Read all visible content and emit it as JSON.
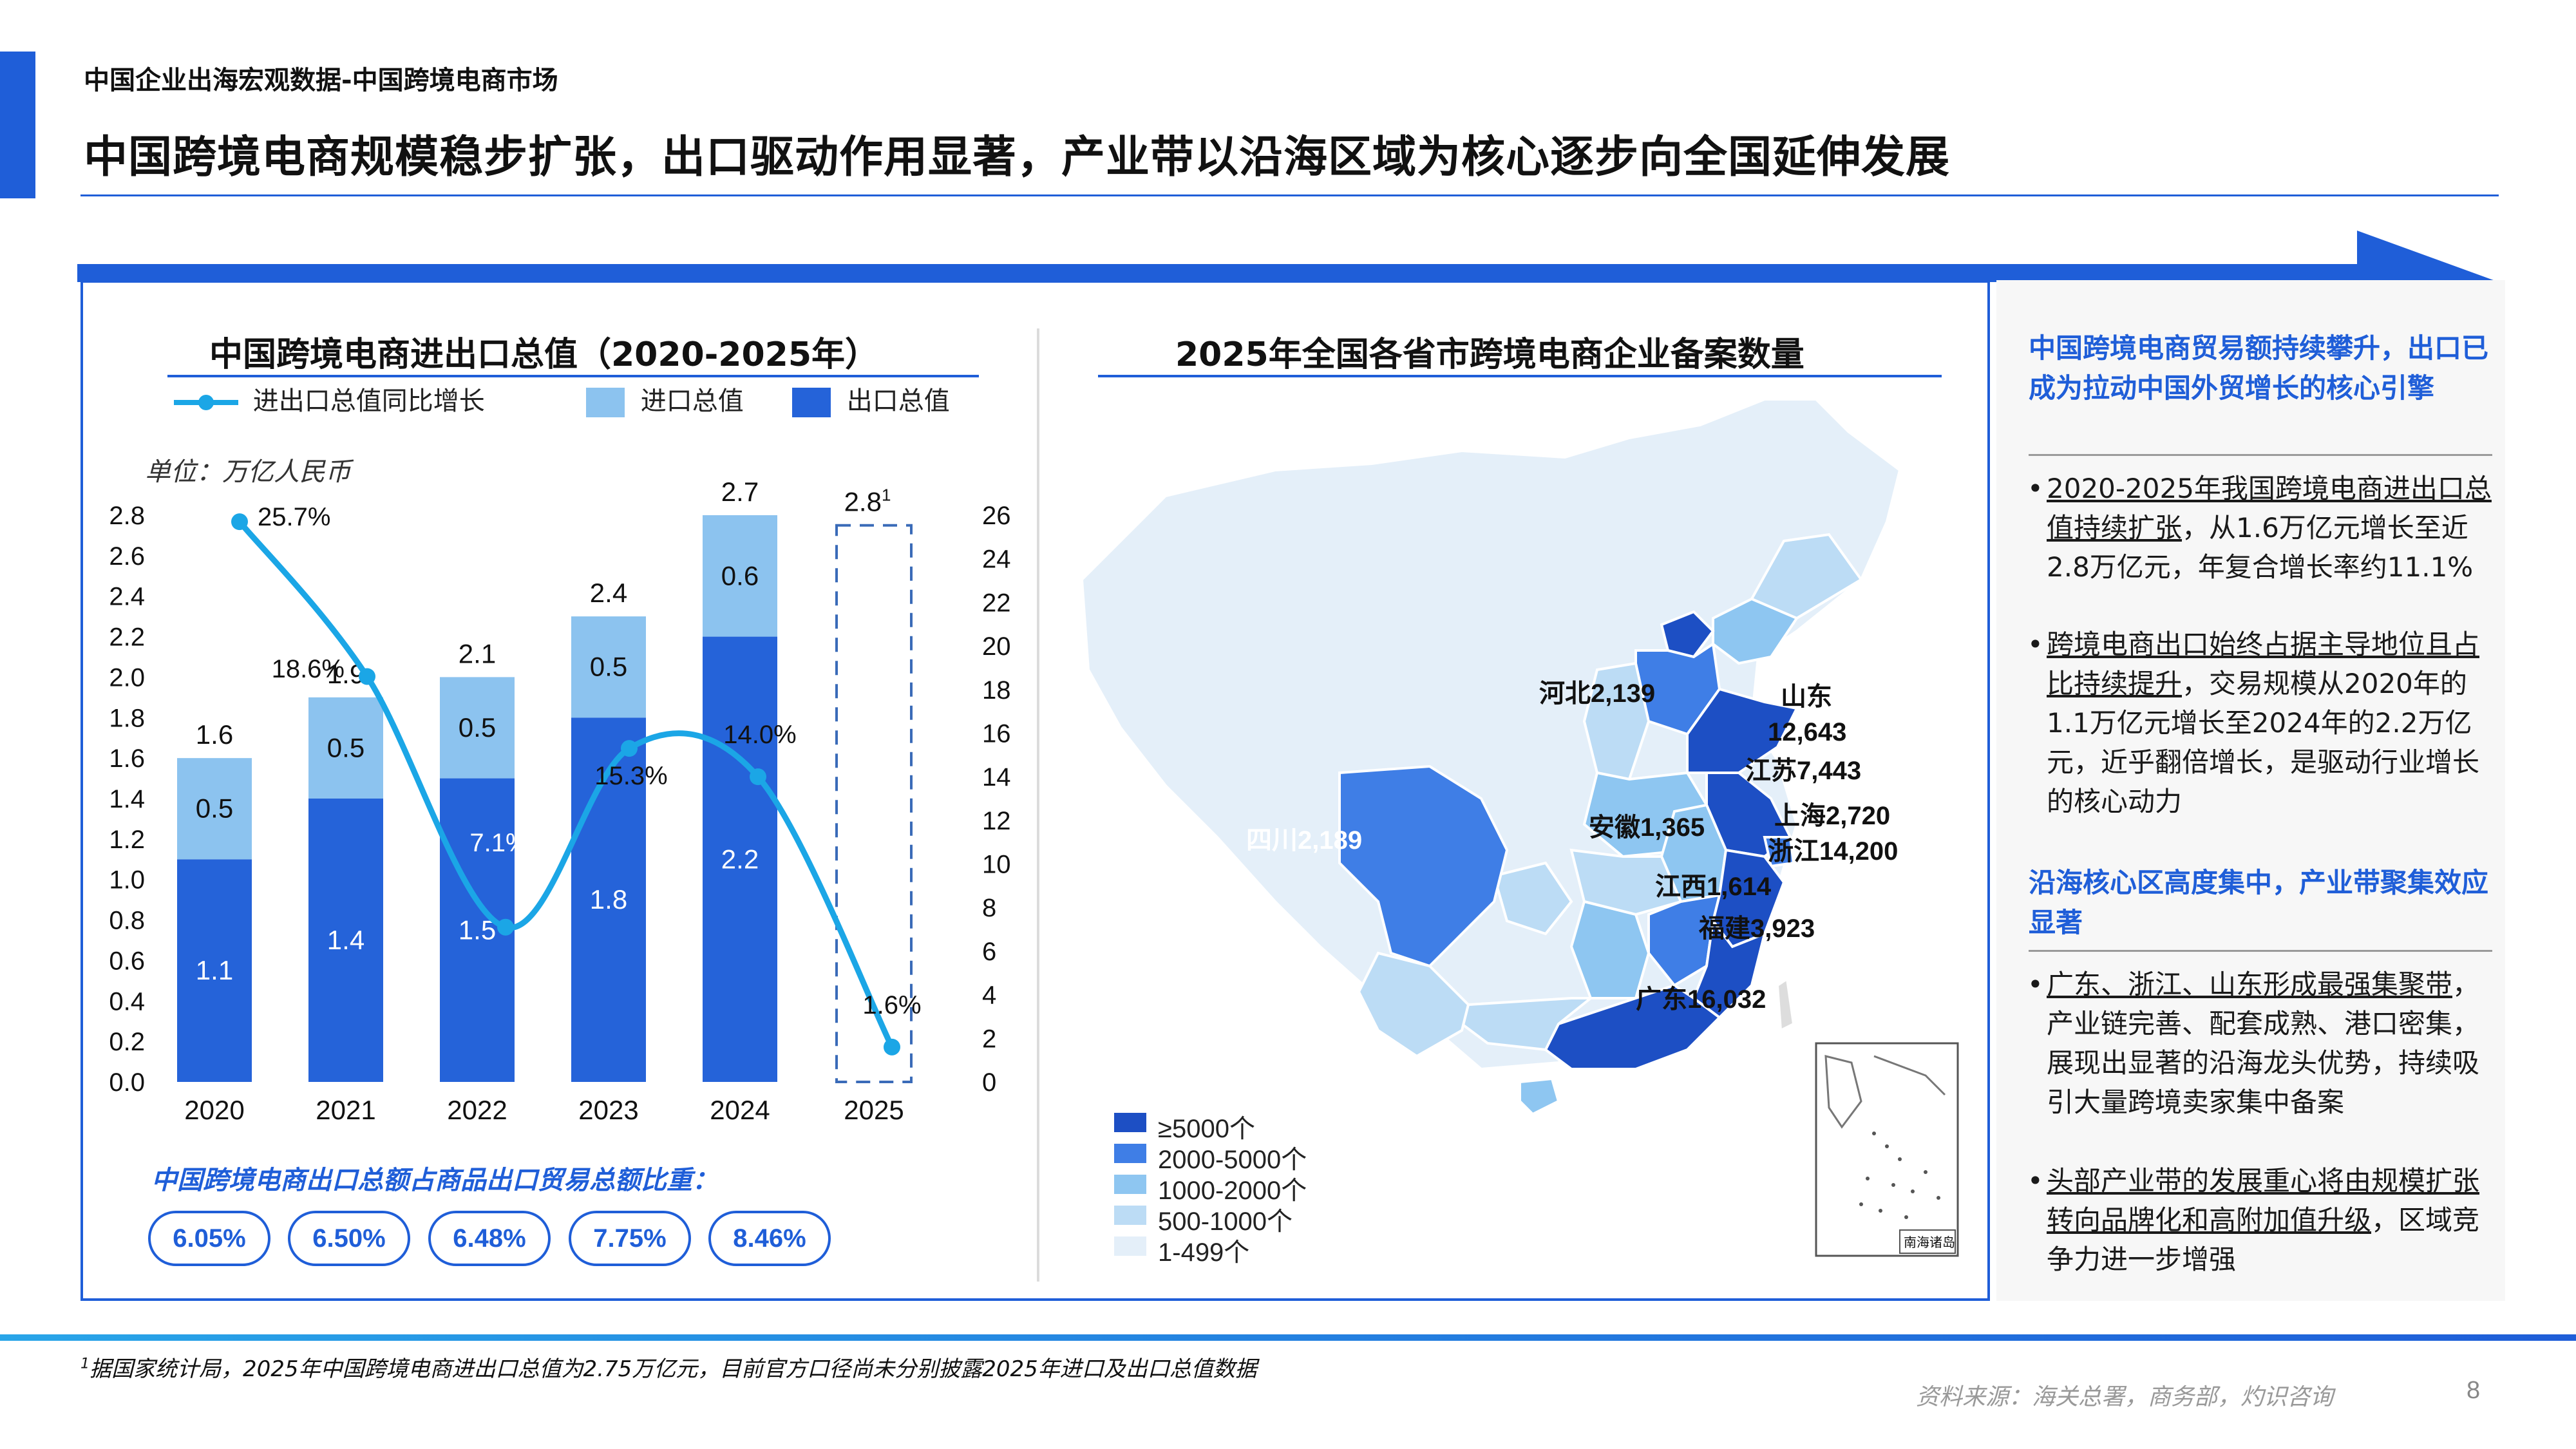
{
  "header": {
    "subtitle": "中国企业出海宏观数据-中国跨境电商市场",
    "headline": "中国跨境电商规模稳步扩张，出口驱动作用显著，产业带以沿海区域为核心逐步向全国延伸发展"
  },
  "chart_data": [
    {
      "type": "bar",
      "title": "中国跨境电商进出口总值（2020-2025年）",
      "unit": "单位：万亿人民币",
      "categories": [
        "2020",
        "2021",
        "2022",
        "2023",
        "2024",
        "2025"
      ],
      "series": [
        {
          "name": "出口总值",
          "values": [
            1.1,
            1.4,
            1.5,
            1.8,
            2.2,
            null
          ]
        },
        {
          "name": "进口总值",
          "values": [
            0.5,
            0.5,
            0.5,
            0.5,
            0.6,
            null
          ]
        },
        {
          "name": "进出口总值同比增长",
          "type": "line",
          "axis": "right",
          "values": [
            25.7,
            18.6,
            7.1,
            15.3,
            14.0,
            1.6
          ]
        }
      ],
      "totals": [
        "1.6",
        "1.9",
        "2.1",
        "2.4",
        "2.7",
        "2.8"
      ],
      "total_2025_note": "1",
      "point_labels": [
        "25.7%",
        "18.6%",
        "7.1%",
        "15.3%",
        "14.0%",
        "1.6%"
      ],
      "ylim": [
        0,
        2.8
      ],
      "y_ticks": [
        "0.0",
        "0.2",
        "0.4",
        "0.6",
        "0.8",
        "1.0",
        "1.2",
        "1.4",
        "1.6",
        "1.8",
        "2.0",
        "2.2",
        "2.4",
        "2.6",
        "2.8"
      ],
      "y2lim": [
        0,
        26
      ],
      "y2_ticks": [
        "0",
        "2",
        "4",
        "6",
        "8",
        "10",
        "12",
        "14",
        "16",
        "18",
        "20",
        "22",
        "24",
        "26"
      ],
      "legend_position": "top",
      "colors": {
        "export": "#2563d9",
        "import": "#8cc3ef",
        "line": "#1ba6e6",
        "pending": "#3a6bb8"
      }
    },
    {
      "type": "map",
      "title": "2025年全国各省市跨境电商企业备案数量",
      "legend": [
        {
          "label": "≥5000个",
          "color": "#1d4fc4"
        },
        {
          "label": "2000-5000个",
          "color": "#3f7ee6"
        },
        {
          "label": "1000-2000个",
          "color": "#8ec6f1"
        },
        {
          "label": "500-1000个",
          "color": "#bcdcf5"
        },
        {
          "label": "1-499个",
          "color": "#e4eff9"
        }
      ],
      "provinces": [
        {
          "name": "河北",
          "label": "河北2,139",
          "value": 2139
        },
        {
          "name": "山东",
          "label": "山东",
          "value_label": "12,643",
          "value": 12643
        },
        {
          "name": "江苏",
          "label": "江苏7,443",
          "value": 7443
        },
        {
          "name": "上海",
          "label": "上海2,720",
          "value": 2720
        },
        {
          "name": "浙江",
          "label": "浙江14,200",
          "value": 14200
        },
        {
          "name": "安徽",
          "label": "安徽1,365",
          "value": 1365
        },
        {
          "name": "江西",
          "label": "江西1,614",
          "value": 1614
        },
        {
          "name": "福建",
          "label": "福建3,923",
          "value": 3923
        },
        {
          "name": "广东",
          "label": "广东16,032",
          "value": 16032
        },
        {
          "name": "四川",
          "label": "四川2,189",
          "value": 2189
        }
      ],
      "inset_label": "南海诸岛"
    }
  ],
  "export_share": {
    "title": "中国跨境电商出口总额占商品出口贸易总额比重：",
    "values": [
      "6.05%",
      "6.50%",
      "6.48%",
      "7.75%",
      "8.46%"
    ]
  },
  "insights": {
    "heading1": "中国跨境电商贸易额持续攀升，出口已成为拉动中国外贸增长的核心引擎",
    "bullet1_u": "2020-2025年我国跨境电商进出口总值持续扩张",
    "bullet1_rest": "，从1.6万亿元增长至近2.8万亿元，年复合增长率约11.1%",
    "bullet2_u": "跨境电商出口始终占据主导地位且占比持续提升",
    "bullet2_rest": "，交易规模从2020年的1.1万亿元增长至2024年的2.2万亿元，近乎翻倍增长，是驱动行业增长的核心动力",
    "heading2": "沿海核心区高度集中，产业带聚集效应显著",
    "bullet3_u": "广东、浙江、山东形成最强集聚带",
    "bullet3_rest": "，产业链完善、配套成熟、港口密集，展现出显著的沿海龙头优势，持续吸引大量跨境卖家集中备案",
    "bullet4_u": "头部产业带的发展重心将由规模扩张转向品牌化和高附加值升级",
    "bullet4_rest": "，区域竞争力进一步增强",
    "bullet_symbol": "•"
  },
  "footer": {
    "footnote_mark": "1",
    "footnote": "据国家统计局，2025年中国跨境电商进出口总值为2.75万亿元，目前官方口径尚未分别披露2025年进口及出口总值数据",
    "source": "资料来源：海关总署，商务部，灼识咨询",
    "page": "8"
  }
}
